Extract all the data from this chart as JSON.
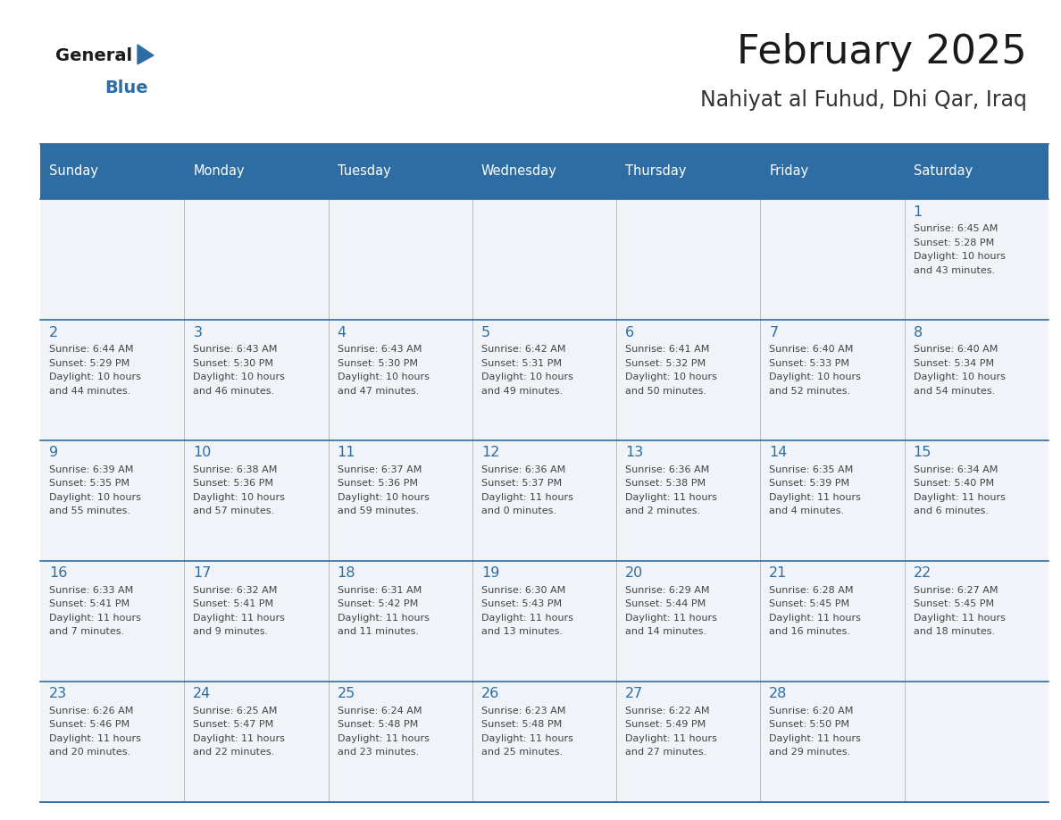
{
  "title": "February 2025",
  "subtitle": "Nahiyat al Fuhud, Dhi Qar, Iraq",
  "days_of_week": [
    "Sunday",
    "Monday",
    "Tuesday",
    "Wednesday",
    "Thursday",
    "Friday",
    "Saturday"
  ],
  "header_bg": "#2E6DA4",
  "header_text": "#FFFFFF",
  "cell_bg": "#F0F4F8",
  "border_color": "#2E6DA4",
  "row_line_color": "#2E6DA4",
  "col_line_color": "#BBBBBB",
  "title_color": "#1a1a1a",
  "subtitle_color": "#333333",
  "text_color": "#444444",
  "num_color": "#2E6DA4",
  "calendar_data": [
    [
      null,
      null,
      null,
      null,
      null,
      null,
      {
        "day": "1",
        "sunrise": "6:45 AM",
        "sunset": "5:28 PM",
        "dl1": "Daylight: 10 hours",
        "dl2": "and 43 minutes."
      }
    ],
    [
      {
        "day": "2",
        "sunrise": "6:44 AM",
        "sunset": "5:29 PM",
        "dl1": "Daylight: 10 hours",
        "dl2": "and 44 minutes."
      },
      {
        "day": "3",
        "sunrise": "6:43 AM",
        "sunset": "5:30 PM",
        "dl1": "Daylight: 10 hours",
        "dl2": "and 46 minutes."
      },
      {
        "day": "4",
        "sunrise": "6:43 AM",
        "sunset": "5:30 PM",
        "dl1": "Daylight: 10 hours",
        "dl2": "and 47 minutes."
      },
      {
        "day": "5",
        "sunrise": "6:42 AM",
        "sunset": "5:31 PM",
        "dl1": "Daylight: 10 hours",
        "dl2": "and 49 minutes."
      },
      {
        "day": "6",
        "sunrise": "6:41 AM",
        "sunset": "5:32 PM",
        "dl1": "Daylight: 10 hours",
        "dl2": "and 50 minutes."
      },
      {
        "day": "7",
        "sunrise": "6:40 AM",
        "sunset": "5:33 PM",
        "dl1": "Daylight: 10 hours",
        "dl2": "and 52 minutes."
      },
      {
        "day": "8",
        "sunrise": "6:40 AM",
        "sunset": "5:34 PM",
        "dl1": "Daylight: 10 hours",
        "dl2": "and 54 minutes."
      }
    ],
    [
      {
        "day": "9",
        "sunrise": "6:39 AM",
        "sunset": "5:35 PM",
        "dl1": "Daylight: 10 hours",
        "dl2": "and 55 minutes."
      },
      {
        "day": "10",
        "sunrise": "6:38 AM",
        "sunset": "5:36 PM",
        "dl1": "Daylight: 10 hours",
        "dl2": "and 57 minutes."
      },
      {
        "day": "11",
        "sunrise": "6:37 AM",
        "sunset": "5:36 PM",
        "dl1": "Daylight: 10 hours",
        "dl2": "and 59 minutes."
      },
      {
        "day": "12",
        "sunrise": "6:36 AM",
        "sunset": "5:37 PM",
        "dl1": "Daylight: 11 hours",
        "dl2": "and 0 minutes."
      },
      {
        "day": "13",
        "sunrise": "6:36 AM",
        "sunset": "5:38 PM",
        "dl1": "Daylight: 11 hours",
        "dl2": "and 2 minutes."
      },
      {
        "day": "14",
        "sunrise": "6:35 AM",
        "sunset": "5:39 PM",
        "dl1": "Daylight: 11 hours",
        "dl2": "and 4 minutes."
      },
      {
        "day": "15",
        "sunrise": "6:34 AM",
        "sunset": "5:40 PM",
        "dl1": "Daylight: 11 hours",
        "dl2": "and 6 minutes."
      }
    ],
    [
      {
        "day": "16",
        "sunrise": "6:33 AM",
        "sunset": "5:41 PM",
        "dl1": "Daylight: 11 hours",
        "dl2": "and 7 minutes."
      },
      {
        "day": "17",
        "sunrise": "6:32 AM",
        "sunset": "5:41 PM",
        "dl1": "Daylight: 11 hours",
        "dl2": "and 9 minutes."
      },
      {
        "day": "18",
        "sunrise": "6:31 AM",
        "sunset": "5:42 PM",
        "dl1": "Daylight: 11 hours",
        "dl2": "and 11 minutes."
      },
      {
        "day": "19",
        "sunrise": "6:30 AM",
        "sunset": "5:43 PM",
        "dl1": "Daylight: 11 hours",
        "dl2": "and 13 minutes."
      },
      {
        "day": "20",
        "sunrise": "6:29 AM",
        "sunset": "5:44 PM",
        "dl1": "Daylight: 11 hours",
        "dl2": "and 14 minutes."
      },
      {
        "day": "21",
        "sunrise": "6:28 AM",
        "sunset": "5:45 PM",
        "dl1": "Daylight: 11 hours",
        "dl2": "and 16 minutes."
      },
      {
        "day": "22",
        "sunrise": "6:27 AM",
        "sunset": "5:45 PM",
        "dl1": "Daylight: 11 hours",
        "dl2": "and 18 minutes."
      }
    ],
    [
      {
        "day": "23",
        "sunrise": "6:26 AM",
        "sunset": "5:46 PM",
        "dl1": "Daylight: 11 hours",
        "dl2": "and 20 minutes."
      },
      {
        "day": "24",
        "sunrise": "6:25 AM",
        "sunset": "5:47 PM",
        "dl1": "Daylight: 11 hours",
        "dl2": "and 22 minutes."
      },
      {
        "day": "25",
        "sunrise": "6:24 AM",
        "sunset": "5:48 PM",
        "dl1": "Daylight: 11 hours",
        "dl2": "and 23 minutes."
      },
      {
        "day": "26",
        "sunrise": "6:23 AM",
        "sunset": "5:48 PM",
        "dl1": "Daylight: 11 hours",
        "dl2": "and 25 minutes."
      },
      {
        "day": "27",
        "sunrise": "6:22 AM",
        "sunset": "5:49 PM",
        "dl1": "Daylight: 11 hours",
        "dl2": "and 27 minutes."
      },
      {
        "day": "28",
        "sunrise": "6:20 AM",
        "sunset": "5:50 PM",
        "dl1": "Daylight: 11 hours",
        "dl2": "and 29 minutes."
      },
      null
    ]
  ]
}
